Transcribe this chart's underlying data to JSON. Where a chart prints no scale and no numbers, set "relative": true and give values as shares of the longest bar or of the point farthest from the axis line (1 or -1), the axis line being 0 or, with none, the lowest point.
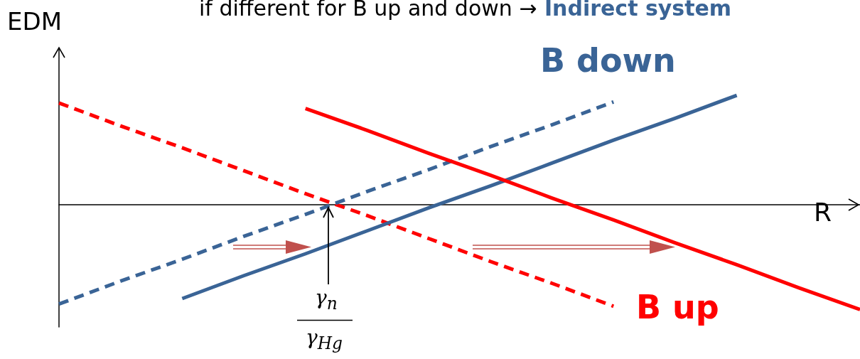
{
  "chart_data": {
    "type": "line",
    "title": "if different for B up and down →",
    "xlabel": "R",
    "ylabel": "EDM",
    "categories": [
      null,
      null,
      null,
      null,
      null,
      null,
      null,
      null,
      null,
      null,
      null,
      null,
      null,
      null
    ],
    "relative": true,
    "marker": "none",
    "series": [
      {
        "color": "#ff0000",
        "line_style": "dashed",
        "values": [
          0.93,
          0.72,
          0.52,
          0.31,
          0.1,
          -0.1,
          -0.31,
          -0.52,
          -0.72,
          -0.93,
          null,
          null,
          null,
          null
        ]
      },
      {
        "color": "#3a6496",
        "line_style": "dashed",
        "values": [
          -0.91,
          -0.7,
          -0.5,
          -0.29,
          -0.09,
          0.12,
          0.32,
          0.53,
          0.73,
          0.94,
          null,
          null,
          null,
          null
        ]
      },
      {
        "color": "#3a6496",
        "line_style": "solid",
        "values": [
          null,
          null,
          -0.86,
          -0.65,
          -0.45,
          -0.24,
          -0.03,
          0.17,
          0.38,
          0.59,
          0.79,
          1.0,
          null,
          null
        ]
      },
      {
        "color": "#ff0000",
        "line_style": "solid",
        "values": [
          null,
          null,
          null,
          null,
          0.88,
          0.68,
          0.47,
          0.27,
          0.06,
          -0.14,
          -0.35,
          -0.55,
          -0.76,
          -0.96
        ]
      }
    ],
    "annotations": [
      "Indirect system",
      "B down",
      "B up",
      "γ$_{n}$",
      "γ$_{Hg}$"
    ]
  }
}
